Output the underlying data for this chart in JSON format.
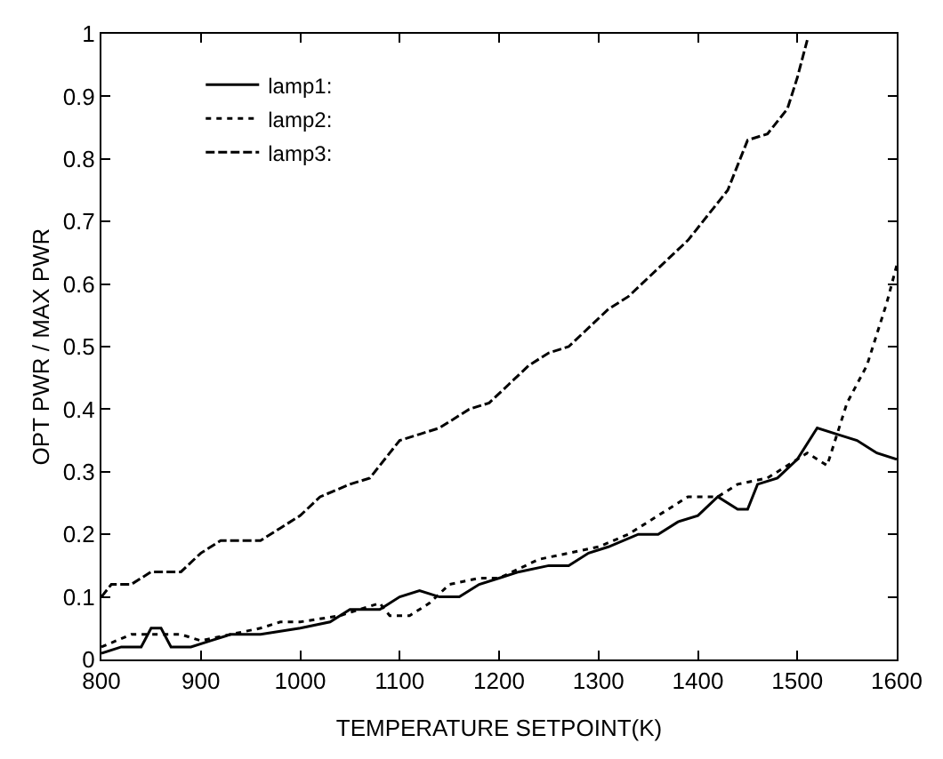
{
  "chart_data": {
    "type": "line",
    "xlabel": "TEMPERATURE SETPOINT(K)",
    "ylabel": "OPT PWR / MAX PWR",
    "xlim": [
      800,
      1600
    ],
    "xticks": [
      800,
      900,
      1000,
      1100,
      1200,
      1300,
      1400,
      1500,
      1600
    ],
    "ylim": [
      0,
      1
    ],
    "yticks": [
      0,
      0.1,
      0.2,
      0.3,
      0.4,
      0.5,
      0.6,
      0.7,
      0.8,
      0.9,
      1
    ],
    "legend": "top left",
    "marker": "none",
    "series": [
      {
        "name": "lamp1:",
        "color": "#000000",
        "line_style": "solid",
        "x": [
          800,
          820,
          840,
          850,
          860,
          870,
          890,
          910,
          930,
          960,
          1000,
          1030,
          1050,
          1080,
          1100,
          1120,
          1140,
          1160,
          1180,
          1200,
          1220,
          1250,
          1270,
          1290,
          1310,
          1340,
          1360,
          1380,
          1400,
          1420,
          1440,
          1450,
          1460,
          1480,
          1500,
          1520,
          1540,
          1560,
          1580,
          1600
        ],
        "values": [
          0.01,
          0.02,
          0.02,
          0.05,
          0.05,
          0.02,
          0.02,
          0.03,
          0.04,
          0.04,
          0.05,
          0.06,
          0.08,
          0.08,
          0.1,
          0.11,
          0.1,
          0.1,
          0.12,
          0.13,
          0.14,
          0.15,
          0.15,
          0.17,
          0.18,
          0.2,
          0.2,
          0.22,
          0.23,
          0.26,
          0.24,
          0.24,
          0.28,
          0.29,
          0.32,
          0.37,
          0.36,
          0.35,
          0.33,
          0.32
        ]
      },
      {
        "name": "lamp2:",
        "color": "#000000",
        "line_style": "dotted",
        "x": [
          800,
          830,
          860,
          880,
          900,
          930,
          960,
          980,
          1000,
          1040,
          1060,
          1080,
          1090,
          1110,
          1130,
          1150,
          1180,
          1200,
          1240,
          1270,
          1300,
          1330,
          1360,
          1390,
          1420,
          1440,
          1470,
          1490,
          1510,
          1530,
          1550,
          1570,
          1590,
          1600
        ],
        "values": [
          0.02,
          0.04,
          0.04,
          0.04,
          0.03,
          0.04,
          0.05,
          0.06,
          0.06,
          0.07,
          0.08,
          0.09,
          0.07,
          0.07,
          0.09,
          0.12,
          0.13,
          0.13,
          0.16,
          0.17,
          0.18,
          0.2,
          0.23,
          0.26,
          0.26,
          0.28,
          0.29,
          0.31,
          0.33,
          0.31,
          0.41,
          0.47,
          0.57,
          0.63
        ]
      },
      {
        "name": "lamp3:",
        "color": "#000000",
        "line_style": "dashed",
        "x": [
          800,
          810,
          830,
          850,
          880,
          900,
          920,
          960,
          980,
          1000,
          1020,
          1050,
          1070,
          1090,
          1100,
          1120,
          1140,
          1170,
          1190,
          1210,
          1230,
          1250,
          1270,
          1290,
          1310,
          1330,
          1350,
          1370,
          1390,
          1410,
          1430,
          1450,
          1470,
          1490,
          1500,
          1510
        ],
        "values": [
          0.1,
          0.12,
          0.12,
          0.14,
          0.14,
          0.17,
          0.19,
          0.19,
          0.21,
          0.23,
          0.26,
          0.28,
          0.29,
          0.33,
          0.35,
          0.36,
          0.37,
          0.4,
          0.41,
          0.44,
          0.47,
          0.49,
          0.5,
          0.53,
          0.56,
          0.58,
          0.61,
          0.64,
          0.67,
          0.71,
          0.75,
          0.83,
          0.84,
          0.88,
          0.93,
          0.99
        ]
      }
    ]
  }
}
